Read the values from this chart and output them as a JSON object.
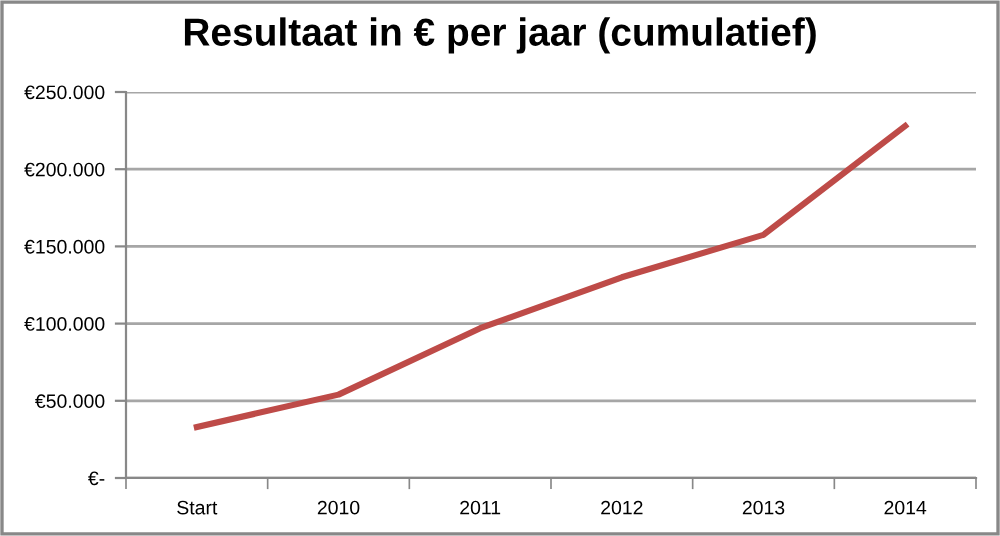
{
  "chart_data": {
    "type": "line",
    "title": "Resultaat in € per jaar (cumulatief)",
    "categories": [
      "Start",
      "2010",
      "2011",
      "2012",
      "2013",
      "2014"
    ],
    "series": [
      {
        "color": "#be4b48",
        "values": [
          33000,
          54000,
          97000,
          130000,
          157500,
          228000
        ]
      }
    ],
    "ylim": [
      0,
      250000
    ],
    "yticks": [
      {
        "value": 0,
        "label": "€-"
      },
      {
        "value": 50000,
        "label": "€50.000"
      },
      {
        "value": 100000,
        "label": "€100.000"
      },
      {
        "value": 150000,
        "label": "€150.000"
      },
      {
        "value": 200000,
        "label": "€200.000"
      },
      {
        "value": 250000,
        "label": "€250.000"
      }
    ],
    "grid": "y",
    "legend": false,
    "marker": "none",
    "line_style": "solid"
  }
}
